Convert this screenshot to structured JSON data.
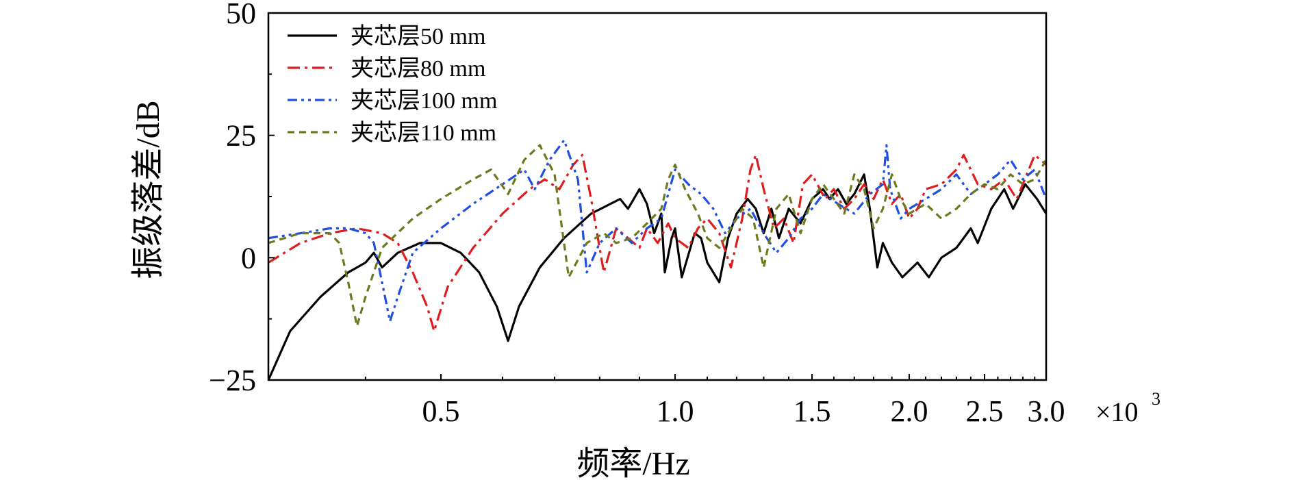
{
  "chart_data": {
    "type": "line",
    "xlabel": "频率/Hz",
    "ylabel": "振级落差/dB",
    "x_scale": "log",
    "xlim": [
      0.3,
      3.0
    ],
    "ylim": [
      -25,
      50
    ],
    "x_ticks": [
      {
        "value": 0.5,
        "label": "0.5"
      },
      {
        "value": 1.0,
        "label": "1.0"
      },
      {
        "value": 1.5,
        "label": "1.5"
      },
      {
        "value": 2.0,
        "label": "2.0"
      },
      {
        "value": 2.5,
        "label": "2.5"
      },
      {
        "value": 3.0,
        "label": "3.0"
      }
    ],
    "x_multiplier_base": "×10",
    "x_multiplier_exp": "3",
    "y_ticks": [
      {
        "value": 50,
        "label": "50"
      },
      {
        "value": 25,
        "label": "25"
      },
      {
        "value": 0,
        "label": "0"
      },
      {
        "value": -25,
        "label": "−25"
      }
    ],
    "legend_position": "top-left",
    "series": [
      {
        "name": "夹芯层50 mm",
        "color": "#000000",
        "dash": "solid",
        "points": [
          [
            0.3,
            -25
          ],
          [
            0.32,
            -15
          ],
          [
            0.35,
            -8
          ],
          [
            0.38,
            -3
          ],
          [
            0.4,
            -1
          ],
          [
            0.41,
            1
          ],
          [
            0.42,
            -2
          ],
          [
            0.44,
            1
          ],
          [
            0.47,
            3
          ],
          [
            0.5,
            3
          ],
          [
            0.53,
            1
          ],
          [
            0.56,
            -3
          ],
          [
            0.59,
            -10
          ],
          [
            0.61,
            -17
          ],
          [
            0.63,
            -10
          ],
          [
            0.67,
            -2
          ],
          [
            0.72,
            4
          ],
          [
            0.78,
            9
          ],
          [
            0.85,
            12
          ],
          [
            0.87,
            10
          ],
          [
            0.9,
            14
          ],
          [
            0.92,
            11
          ],
          [
            0.94,
            5
          ],
          [
            0.96,
            9
          ],
          [
            0.97,
            -3
          ],
          [
            0.99,
            4
          ],
          [
            1.0,
            6
          ],
          [
            1.02,
            -4
          ],
          [
            1.06,
            5
          ],
          [
            1.08,
            4
          ],
          [
            1.1,
            -1
          ],
          [
            1.14,
            -5
          ],
          [
            1.17,
            4
          ],
          [
            1.2,
            9
          ],
          [
            1.24,
            12
          ],
          [
            1.27,
            10
          ],
          [
            1.3,
            5
          ],
          [
            1.33,
            10
          ],
          [
            1.36,
            4
          ],
          [
            1.4,
            10
          ],
          [
            1.45,
            7
          ],
          [
            1.5,
            12
          ],
          [
            1.55,
            14
          ],
          [
            1.58,
            12
          ],
          [
            1.62,
            14
          ],
          [
            1.66,
            11
          ],
          [
            1.7,
            13
          ],
          [
            1.75,
            17
          ],
          [
            1.78,
            10
          ],
          [
            1.82,
            -2
          ],
          [
            1.85,
            3
          ],
          [
            1.9,
            -1
          ],
          [
            1.96,
            -4
          ],
          [
            2.05,
            -1
          ],
          [
            2.12,
            -4
          ],
          [
            2.2,
            0
          ],
          [
            2.3,
            2
          ],
          [
            2.4,
            6
          ],
          [
            2.45,
            3
          ],
          [
            2.55,
            10
          ],
          [
            2.65,
            14
          ],
          [
            2.72,
            10
          ],
          [
            2.82,
            15
          ],
          [
            2.92,
            12
          ],
          [
            3.0,
            9
          ]
        ]
      },
      {
        "name": "夹芯层80 mm",
        "color": "#e01c1c",
        "dash": "dashdot",
        "points": [
          [
            0.3,
            -1
          ],
          [
            0.33,
            3
          ],
          [
            0.36,
            5
          ],
          [
            0.39,
            6
          ],
          [
            0.42,
            5
          ],
          [
            0.44,
            3
          ],
          [
            0.46,
            -3
          ],
          [
            0.48,
            -10
          ],
          [
            0.49,
            -15
          ],
          [
            0.51,
            -6
          ],
          [
            0.55,
            2
          ],
          [
            0.6,
            9
          ],
          [
            0.65,
            14
          ],
          [
            0.68,
            16
          ],
          [
            0.71,
            14
          ],
          [
            0.74,
            19
          ],
          [
            0.76,
            21
          ],
          [
            0.78,
            12
          ],
          [
            0.81,
            -3
          ],
          [
            0.84,
            6
          ],
          [
            0.87,
            4
          ],
          [
            0.9,
            2
          ],
          [
            0.92,
            6
          ],
          [
            0.95,
            3
          ],
          [
            0.98,
            7
          ],
          [
            1.0,
            4
          ],
          [
            1.04,
            2
          ],
          [
            1.07,
            6
          ],
          [
            1.1,
            8
          ],
          [
            1.14,
            5
          ],
          [
            1.18,
            -2
          ],
          [
            1.22,
            8
          ],
          [
            1.25,
            18
          ],
          [
            1.27,
            21
          ],
          [
            1.3,
            14
          ],
          [
            1.34,
            6
          ],
          [
            1.38,
            8
          ],
          [
            1.42,
            3
          ],
          [
            1.46,
            15
          ],
          [
            1.5,
            17
          ],
          [
            1.56,
            12
          ],
          [
            1.6,
            14
          ],
          [
            1.65,
            10
          ],
          [
            1.7,
            12
          ],
          [
            1.75,
            15
          ],
          [
            1.8,
            12
          ],
          [
            1.85,
            16
          ],
          [
            1.9,
            11
          ],
          [
            1.95,
            13
          ],
          [
            2.0,
            8
          ],
          [
            2.05,
            10
          ],
          [
            2.1,
            14
          ],
          [
            2.2,
            15
          ],
          [
            2.3,
            18
          ],
          [
            2.35,
            21
          ],
          [
            2.45,
            15
          ],
          [
            2.55,
            14
          ],
          [
            2.65,
            16
          ],
          [
            2.75,
            12
          ],
          [
            2.9,
            21
          ],
          [
            3.0,
            19
          ]
        ]
      },
      {
        "name": "夹芯层100 mm",
        "color": "#1f4fe0",
        "dash": "dashdotdot",
        "points": [
          [
            0.3,
            4
          ],
          [
            0.33,
            5
          ],
          [
            0.36,
            6
          ],
          [
            0.38,
            6
          ],
          [
            0.4,
            5
          ],
          [
            0.41,
            3
          ],
          [
            0.42,
            -5
          ],
          [
            0.43,
            -13
          ],
          [
            0.44,
            -8
          ],
          [
            0.46,
            1
          ],
          [
            0.5,
            6
          ],
          [
            0.55,
            11
          ],
          [
            0.6,
            15
          ],
          [
            0.64,
            18
          ],
          [
            0.66,
            14
          ],
          [
            0.69,
            20
          ],
          [
            0.72,
            24
          ],
          [
            0.75,
            16
          ],
          [
            0.77,
            -3
          ],
          [
            0.8,
            3
          ],
          [
            0.84,
            6
          ],
          [
            0.88,
            3
          ],
          [
            0.92,
            6
          ],
          [
            0.96,
            8
          ],
          [
            1.0,
            18
          ],
          [
            1.04,
            15
          ],
          [
            1.08,
            13
          ],
          [
            1.12,
            10
          ],
          [
            1.16,
            5
          ],
          [
            1.2,
            8
          ],
          [
            1.25,
            10
          ],
          [
            1.3,
            5
          ],
          [
            1.35,
            1
          ],
          [
            1.4,
            4
          ],
          [
            1.45,
            8
          ],
          [
            1.5,
            10
          ],
          [
            1.55,
            13
          ],
          [
            1.62,
            11
          ],
          [
            1.7,
            9
          ],
          [
            1.78,
            13
          ],
          [
            1.85,
            15
          ],
          [
            1.87,
            23
          ],
          [
            1.89,
            14
          ],
          [
            1.95,
            8
          ],
          [
            2.0,
            10
          ],
          [
            2.1,
            12
          ],
          [
            2.2,
            14
          ],
          [
            2.3,
            17
          ],
          [
            2.4,
            13
          ],
          [
            2.5,
            15
          ],
          [
            2.6,
            17
          ],
          [
            2.7,
            20
          ],
          [
            2.8,
            16
          ],
          [
            2.9,
            18
          ],
          [
            3.0,
            12
          ]
        ]
      },
      {
        "name": "夹芯层110 mm",
        "color": "#6b7a1f",
        "dash": "dashed",
        "points": [
          [
            0.3,
            3
          ],
          [
            0.33,
            5
          ],
          [
            0.36,
            5
          ],
          [
            0.37,
            3
          ],
          [
            0.38,
            -5
          ],
          [
            0.39,
            -14
          ],
          [
            0.4,
            -8
          ],
          [
            0.42,
            2
          ],
          [
            0.46,
            8
          ],
          [
            0.5,
            12
          ],
          [
            0.55,
            16
          ],
          [
            0.58,
            18
          ],
          [
            0.61,
            13
          ],
          [
            0.64,
            20
          ],
          [
            0.67,
            23
          ],
          [
            0.7,
            17
          ],
          [
            0.73,
            -4
          ],
          [
            0.77,
            3
          ],
          [
            0.81,
            5
          ],
          [
            0.84,
            3
          ],
          [
            0.88,
            4
          ],
          [
            0.92,
            7
          ],
          [
            0.96,
            10
          ],
          [
            0.98,
            16
          ],
          [
            1.0,
            19
          ],
          [
            1.03,
            14
          ],
          [
            1.07,
            9
          ],
          [
            1.1,
            4
          ],
          [
            1.14,
            2
          ],
          [
            1.18,
            6
          ],
          [
            1.22,
            10
          ],
          [
            1.26,
            8
          ],
          [
            1.3,
            -2
          ],
          [
            1.35,
            10
          ],
          [
            1.4,
            13
          ],
          [
            1.45,
            5
          ],
          [
            1.5,
            12
          ],
          [
            1.55,
            15
          ],
          [
            1.6,
            12
          ],
          [
            1.65,
            9
          ],
          [
            1.7,
            17
          ],
          [
            1.75,
            14
          ],
          [
            1.8,
            6
          ],
          [
            1.85,
            10
          ],
          [
            1.9,
            17
          ],
          [
            1.95,
            12
          ],
          [
            2.0,
            9
          ],
          [
            2.1,
            11
          ],
          [
            2.2,
            8
          ],
          [
            2.3,
            10
          ],
          [
            2.4,
            13
          ],
          [
            2.5,
            15
          ],
          [
            2.6,
            14
          ],
          [
            2.7,
            17
          ],
          [
            2.8,
            15
          ],
          [
            2.9,
            16
          ],
          [
            3.0,
            20
          ]
        ]
      }
    ]
  }
}
